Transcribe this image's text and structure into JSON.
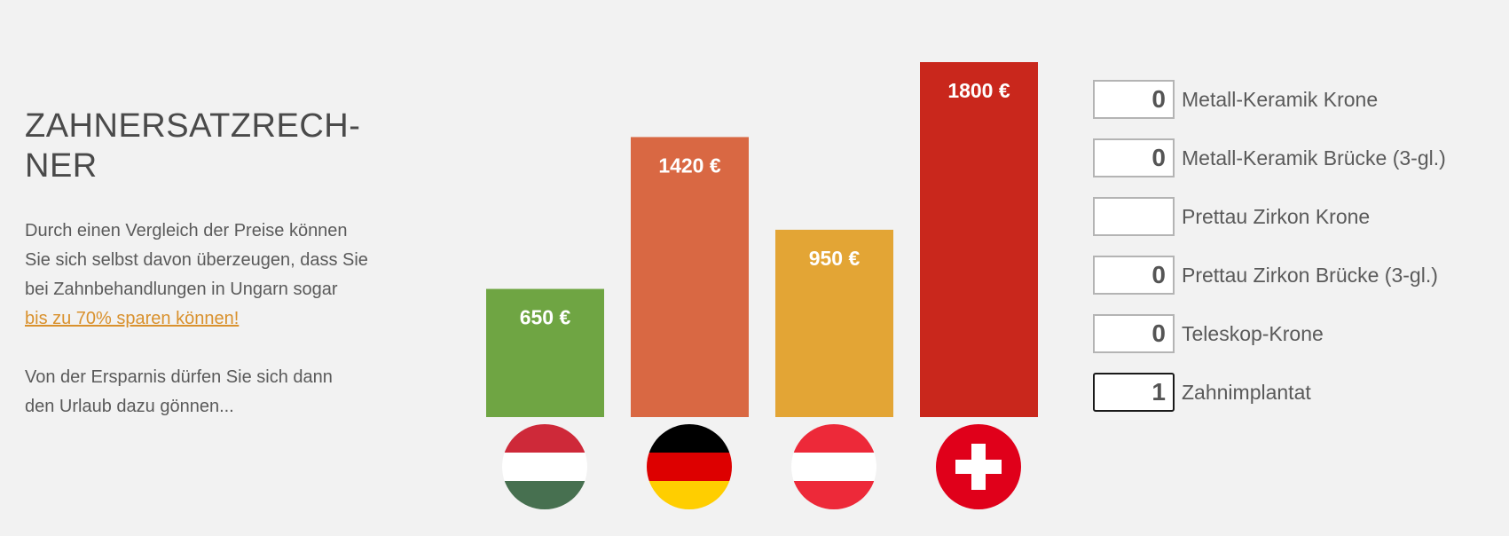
{
  "intro": {
    "title_line1": "ZAHNERSATZRECH-",
    "title_line2": "NER",
    "paragraph1": [
      "Durch einen Vergleich der Preise können",
      "Sie sich selbst davon überzeugen, dass Sie",
      "bei Zahnbehandlungen in Ungarn sogar"
    ],
    "savings_link": "bis zu 70% sparen können!",
    "paragraph2": [
      "Von der Ersparnis dürfen Sie sich dann",
      "den Urlaub dazu gönnen..."
    ]
  },
  "chart_data": {
    "type": "bar",
    "categories": [
      "Ungarn",
      "Deutschland",
      "Österreich",
      "Schweiz"
    ],
    "values": [
      650,
      1420,
      950,
      1800
    ],
    "value_labels": [
      "650 €",
      "1420 €",
      "950 €",
      "1800 €"
    ],
    "colors": [
      "#6fa543",
      "#d96843",
      "#e3a535",
      "#c9271c"
    ],
    "title": "",
    "xlabel": "",
    "ylabel": "",
    "ylim": [
      0,
      1800
    ],
    "grid": false,
    "legend": "none"
  },
  "flags": [
    {
      "country": "hungary",
      "colors": [
        "#ce2939",
        "#ffffff",
        "#477050"
      ]
    },
    {
      "country": "germany",
      "colors": [
        "#000000",
        "#dd0000",
        "#ffce00"
      ]
    },
    {
      "country": "austria",
      "colors": [
        "#ed2939",
        "#ffffff",
        "#ed2939"
      ]
    },
    {
      "country": "switzerland",
      "colors": [
        "#e0001a",
        "#ffffff"
      ]
    }
  ],
  "calculator": {
    "items": [
      {
        "value": "0",
        "label": "Metall-Keramik Krone"
      },
      {
        "value": "0",
        "label": "Metall-Keramik Brücke (3-gl.)"
      },
      {
        "value": "",
        "label": "Prettau Zirkon Krone"
      },
      {
        "value": "0",
        "label": "Prettau Zirkon Brücke (3-gl.)"
      },
      {
        "value": "0",
        "label": "Teleskop-Krone"
      },
      {
        "value": "1",
        "label": "Zahnimplantat"
      }
    ]
  }
}
